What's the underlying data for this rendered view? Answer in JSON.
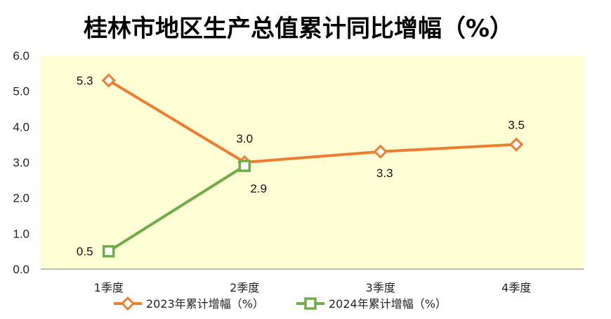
{
  "chart_data": {
    "type": "line",
    "title": "桂林市地区生产总值累计同比增幅（%）",
    "categories": [
      "1季度",
      "2季度",
      "3季度",
      "4季度"
    ],
    "ylim": [
      0,
      6
    ],
    "yticks": [
      "0.0",
      "1.0",
      "2.0",
      "3.0",
      "4.0",
      "5.0",
      "6.0"
    ],
    "grid": false,
    "legend": "bottom",
    "series": [
      {
        "name": "2023年累计增幅（%）",
        "values": [
          5.3,
          3.0,
          3.3,
          3.5
        ],
        "labels": [
          "5.3",
          "3.0",
          "3.3",
          "3.5"
        ],
        "color": "#ED7D31",
        "marker": "diamond"
      },
      {
        "name": "2024年累计增幅（%）",
        "values": [
          0.5,
          2.9,
          null,
          null
        ],
        "labels": [
          "0.5",
          "2.9"
        ],
        "color": "#70AD47",
        "marker": "square"
      }
    ],
    "plot_background": "#FFFFD5"
  }
}
